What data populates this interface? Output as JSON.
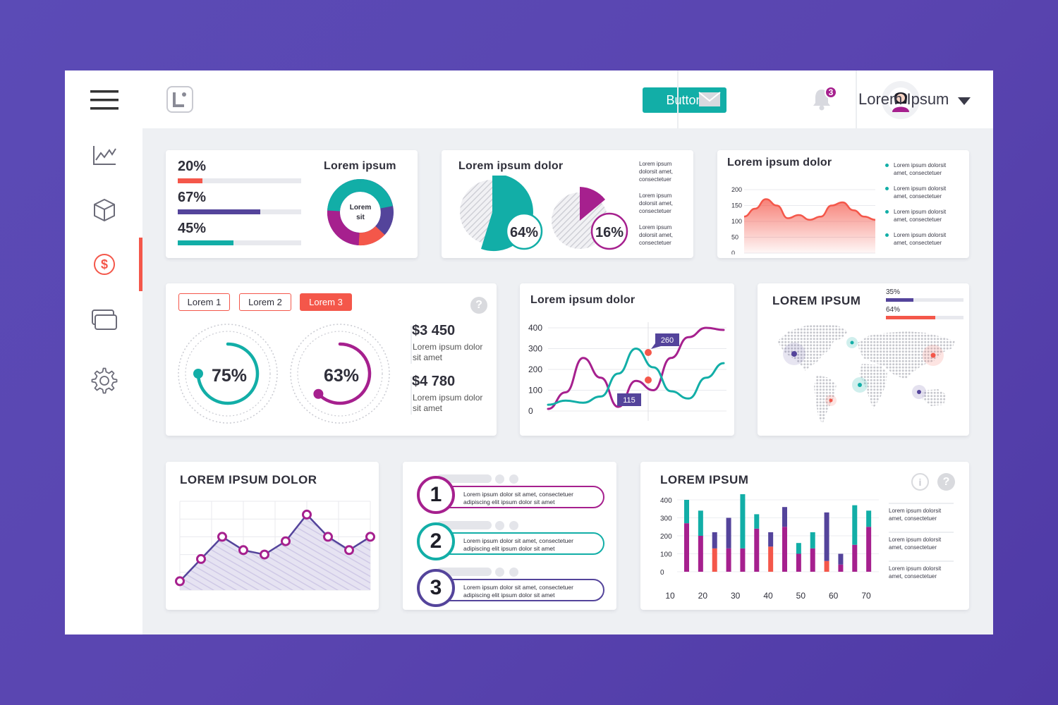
{
  "header": {
    "button_label": "Button",
    "notification_count": "3",
    "user_name": "Lorem Ipsum",
    "icons": [
      "menu-icon",
      "logo-icon",
      "mail-icon",
      "bell-icon",
      "avatar",
      "caret-down-icon"
    ]
  },
  "sidebar": {
    "items": [
      {
        "name": "sidebar-item-analytics",
        "icon": "line-chart-icon"
      },
      {
        "name": "sidebar-item-products",
        "icon": "cube-icon"
      },
      {
        "name": "sidebar-item-finance",
        "icon": "dollar-icon",
        "active": true
      },
      {
        "name": "sidebar-item-windows",
        "icon": "windows-icon"
      },
      {
        "name": "sidebar-item-settings",
        "icon": "gear-icon"
      }
    ]
  },
  "colors": {
    "accent_red": "#f4574a",
    "teal": "#12aea7",
    "purple": "#54449b",
    "magenta": "#a6208e"
  },
  "card_progress": {
    "title": "Lorem ipsum",
    "bars": [
      {
        "label": "20%",
        "value": 0.2,
        "color": "#f4574a"
      },
      {
        "label": "67%",
        "value": 0.67,
        "color": "#54449b"
      },
      {
        "label": "45%",
        "value": 0.45,
        "color": "#12aea7"
      }
    ],
    "donut_center_line1": "Lorem",
    "donut_center_line2": "sit"
  },
  "card_pies": {
    "title": "Lorem ipsum dolor",
    "pie1_label": "64%",
    "pie2_label": "16%",
    "notes": [
      {
        "l1": "Lorem ipsum",
        "l2": "dolorsit amet,",
        "l3": "consectetuer"
      },
      {
        "l1": "Lorem ipsum",
        "l2": "dolorsit amet,",
        "l3": "consectetuer"
      },
      {
        "l1": "Lorem ipsum",
        "l2": "dolorsit amet,",
        "l3": "consectetuer"
      }
    ]
  },
  "card_area": {
    "title": "Lorem ipsum dolor",
    "legend": [
      {
        "l1": "Lorem ipsum dolorsit",
        "l2": "amet, consectetuer"
      },
      {
        "l1": "Lorem ipsum dolorsit",
        "l2": "amet, consectetuer"
      },
      {
        "l1": "Lorem ipsum dolorsit",
        "l2": "amet, consectetuer"
      },
      {
        "l1": "Lorem ipsum dolorsit",
        "l2": "amet, consectetuer"
      }
    ]
  },
  "card_tabs": {
    "tabs": [
      "Lorem 1",
      "Lorem 2",
      "Lorem 3"
    ],
    "gauge1_label": "75%",
    "gauge1_value": 0.75,
    "gauge2_label": "63%",
    "gauge2_value": 0.63,
    "stat1_value": "$3 450",
    "stat1_desc1": "Lorem ipsum dolor",
    "stat1_desc2": "sit amet",
    "stat2_value": "$4 780",
    "stat2_desc1": "Lorem ipsum dolor",
    "stat2_desc2": "sit amet",
    "help_glyph": "?"
  },
  "card_map": {
    "title": "LOREM IPSUM",
    "bars": [
      {
        "label": "35%",
        "value": 0.35,
        "color": "#54449b"
      },
      {
        "label": "64%",
        "value": 0.64,
        "color": "#f4574a"
      }
    ]
  },
  "card_bottom_area": {
    "title": "LOREM IPSUM DOLOR"
  },
  "card_steps": {
    "steps": [
      {
        "number": "1",
        "line1": "Lorem ipsum dolor sit amet, consectetuer",
        "line2": "adipiscing elit ipsum dolor sit amet",
        "color": "#a6208e"
      },
      {
        "number": "2",
        "line1": "Lorem ipsum dolor sit amet, consectetuer",
        "line2": "adipiscing elit ipsum dolor sit amet",
        "color": "#12aea7"
      },
      {
        "number": "3",
        "line1": "Lorem ipsum dolor sit amet, consectetuer",
        "line2": "adipiscing elit ipsum dolor sit amet",
        "color": "#54449b"
      }
    ]
  },
  "card_bars": {
    "title": "LOREM IPSUM",
    "info_glyph": "i",
    "help_glyph": "?",
    "legend": [
      {
        "l1": "Lorem ipsum dolorsit",
        "l2": "amet, consectetuer"
      },
      {
        "l1": "Lorem ipsum dolorsit",
        "l2": "amet, consectetuer"
      },
      {
        "l1": "Lorem ipsum dolorsit",
        "l2": "amet, consectetuer"
      }
    ]
  },
  "chart_data": [
    {
      "id": "area-chart",
      "type": "area",
      "title": "Lorem ipsum dolor",
      "yticks": [
        "200",
        "150",
        "100",
        "50",
        "0"
      ],
      "ylim": [
        0,
        200
      ],
      "x": [
        0,
        1,
        2,
        3,
        4,
        5,
        6,
        7,
        8,
        9,
        10,
        11,
        12
      ],
      "values": [
        115,
        140,
        170,
        150,
        110,
        120,
        105,
        115,
        150,
        160,
        135,
        115,
        105
      ],
      "color": "#f4574a"
    },
    {
      "id": "line-chart",
      "type": "line",
      "yticks": [
        "400",
        "300",
        "200",
        "100",
        "0"
      ],
      "ylim": [
        0,
        400
      ],
      "series": [
        {
          "color": "#a6208e",
          "values": [
            10,
            90,
            255,
            160,
            20,
            145,
            100,
            255,
            355,
            400,
            390
          ]
        },
        {
          "color": "#12aea7",
          "values": [
            30,
            50,
            40,
            70,
            180,
            300,
            210,
            95,
            60,
            160,
            230
          ]
        }
      ],
      "annotations": [
        {
          "label": "260",
          "color": "#54449b"
        },
        {
          "label": "115",
          "color": "#54449b"
        }
      ]
    },
    {
      "id": "bottom-line-chart",
      "type": "area",
      "title": "LOREM IPSUM DOLOR",
      "values": [
        10,
        35,
        60,
        45,
        40,
        55,
        85,
        60,
        45,
        60
      ],
      "ylim": [
        0,
        100
      ],
      "color": "#54449b",
      "marker_color": "#a6208e"
    },
    {
      "id": "stacked-bar-chart",
      "type": "bar",
      "title": "LOREM IPSUM",
      "categories": [
        "10",
        "20",
        "30",
        "40",
        "50",
        "60",
        "70"
      ],
      "yticks": [
        "400",
        "300",
        "200",
        "100",
        "0"
      ],
      "ylim": [
        0,
        400
      ],
      "bars": [
        {
          "red": 0,
          "magenta": 270,
          "top": 130,
          "top_color": "#12aea7"
        },
        {
          "red": 0,
          "magenta": 200,
          "top": 140,
          "top_color": "#12aea7"
        },
        {
          "red": 130,
          "magenta": 0,
          "top": 90,
          "top_color": "#54449b"
        },
        {
          "red": 0,
          "magenta": 130,
          "top": 170,
          "top_color": "#54449b"
        },
        {
          "red": 0,
          "magenta": 130,
          "top": 310,
          "top_color": "#12aea7"
        },
        {
          "red": 0,
          "magenta": 240,
          "top": 80,
          "top_color": "#12aea7"
        },
        {
          "red": 140,
          "magenta": 0,
          "top": 80,
          "top_color": "#54449b"
        },
        {
          "red": 0,
          "magenta": 250,
          "top": 110,
          "top_color": "#54449b"
        },
        {
          "red": 0,
          "magenta": 100,
          "top": 60,
          "top_color": "#12aea7"
        },
        {
          "red": 0,
          "magenta": 130,
          "top": 90,
          "top_color": "#12aea7"
        },
        {
          "red": 60,
          "magenta": 0,
          "top": 270,
          "top_color": "#54449b"
        },
        {
          "red": 0,
          "magenta": 40,
          "top": 60,
          "top_color": "#54449b"
        },
        {
          "red": 0,
          "magenta": 150,
          "top": 220,
          "top_color": "#12aea7"
        },
        {
          "red": 0,
          "magenta": 250,
          "top": 90,
          "top_color": "#12aea7"
        }
      ]
    }
  ]
}
